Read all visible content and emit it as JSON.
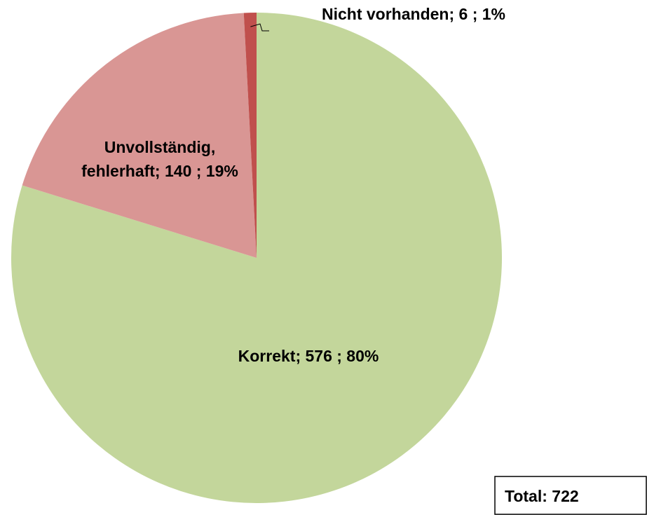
{
  "chart_data": {
    "type": "pie",
    "values": [
      576,
      140,
      6
    ],
    "value_labels": [
      "Korrekt; 576 ; 80%",
      "Unvollständig, fehlerhaft; 140 ; 19%",
      "Nicht vorhanden; 6 ; 1%"
    ],
    "colors": [
      "#c3d69b",
      "#d99694",
      "#c0504d"
    ],
    "annotation": "Total: 722"
  }
}
